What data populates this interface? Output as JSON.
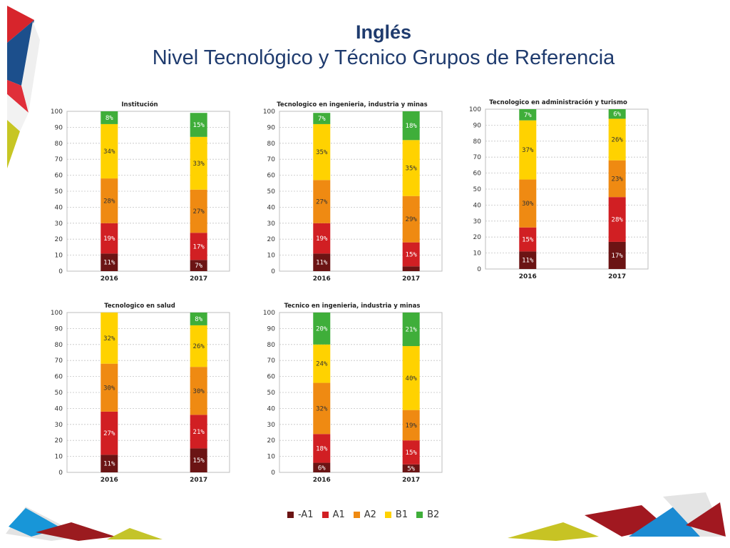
{
  "header": {
    "title": "Inglés",
    "subtitle": "Nivel Tecnológico y Técnico Grupos de Referencia"
  },
  "legend": [
    {
      "label": "-A1",
      "color": "#6b1414"
    },
    {
      "label": "A1",
      "color": "#d11f23"
    },
    {
      "label": "A2",
      "color": "#ef8a12"
    },
    {
      "label": "B1",
      "color": "#ffd200"
    },
    {
      "label": "B2",
      "color": "#3fae3a"
    }
  ],
  "chart_data": [
    {
      "type": "bar",
      "stacked": true,
      "title": "Institución",
      "categories": [
        "2016",
        "2017"
      ],
      "ylim": [
        0,
        100
      ],
      "yticks": [
        "0",
        "10",
        "20",
        "30",
        "40",
        "50",
        "60",
        "70",
        "80",
        "90",
        "100"
      ],
      "grid": true,
      "series": [
        {
          "name": "-A1",
          "values": [
            11,
            7
          ],
          "labels": [
            "11%",
            "7%"
          ]
        },
        {
          "name": "A1",
          "values": [
            19,
            17
          ],
          "labels": [
            "19%",
            "17%"
          ]
        },
        {
          "name": "A2",
          "values": [
            28,
            27
          ],
          "labels": [
            "28%",
            "27%"
          ]
        },
        {
          "name": "B1",
          "values": [
            34,
            33
          ],
          "labels": [
            "34%",
            "33%"
          ]
        },
        {
          "name": "B2",
          "values": [
            8,
            15
          ],
          "labels": [
            "8%",
            "15%"
          ]
        }
      ]
    },
    {
      "type": "bar",
      "stacked": true,
      "title": "Tecnologico en ingenieria, industria y minas",
      "categories": [
        "2016",
        "2017"
      ],
      "ylim": [
        0,
        100
      ],
      "yticks": [
        "0",
        "10",
        "20",
        "30",
        "40",
        "50",
        "60",
        "70",
        "80",
        "90",
        "100"
      ],
      "grid": true,
      "series": [
        {
          "name": "-A1",
          "values": [
            11,
            3
          ],
          "labels": [
            "11%",
            ""
          ]
        },
        {
          "name": "A1",
          "values": [
            19,
            15
          ],
          "labels": [
            "19%",
            "15%"
          ]
        },
        {
          "name": "A2",
          "values": [
            27,
            29
          ],
          "labels": [
            "27%",
            "29%"
          ]
        },
        {
          "name": "B1",
          "values": [
            35,
            35
          ],
          "labels": [
            "35%",
            "35%"
          ]
        },
        {
          "name": "B2",
          "values": [
            7,
            18
          ],
          "labels": [
            "7%",
            "18%"
          ]
        }
      ]
    },
    {
      "type": "bar",
      "stacked": true,
      "title": "Tecnologico en administración y turismo",
      "categories": [
        "2016",
        "2017"
      ],
      "ylim": [
        0,
        100
      ],
      "yticks": [
        "0",
        "10",
        "20",
        "30",
        "40",
        "50",
        "60",
        "70",
        "80",
        "90",
        "100"
      ],
      "grid": true,
      "series": [
        {
          "name": "-A1",
          "values": [
            11,
            17
          ],
          "labels": [
            "11%",
            "17%"
          ]
        },
        {
          "name": "A1",
          "values": [
            15,
            28
          ],
          "labels": [
            "15%",
            "28%"
          ]
        },
        {
          "name": "A2",
          "values": [
            30,
            23
          ],
          "labels": [
            "30%",
            "23%"
          ]
        },
        {
          "name": "B1",
          "values": [
            37,
            26
          ],
          "labels": [
            "37%",
            "26%"
          ]
        },
        {
          "name": "B2",
          "values": [
            7,
            6
          ],
          "labels": [
            "7%",
            "6%"
          ]
        }
      ]
    },
    {
      "type": "bar",
      "stacked": true,
      "title": "Tecnologico en salud",
      "categories": [
        "2016",
        "2017"
      ],
      "ylim": [
        0,
        100
      ],
      "yticks": [
        "0",
        "10",
        "20",
        "30",
        "40",
        "50",
        "60",
        "70",
        "80",
        "90",
        "100"
      ],
      "grid": true,
      "series": [
        {
          "name": "-A1",
          "values": [
            11,
            15
          ],
          "labels": [
            "11%",
            "15%"
          ]
        },
        {
          "name": "A1",
          "values": [
            27,
            21
          ],
          "labels": [
            "27%",
            "21%"
          ]
        },
        {
          "name": "A2",
          "values": [
            30,
            30
          ],
          "labels": [
            "30%",
            "30%"
          ]
        },
        {
          "name": "B1",
          "values": [
            32,
            26
          ],
          "labels": [
            "32%",
            "26%"
          ]
        },
        {
          "name": "B2",
          "values": [
            0,
            8
          ],
          "labels": [
            "",
            "8%"
          ]
        }
      ]
    },
    {
      "type": "bar",
      "stacked": true,
      "title": "Tecnico en ingenieria, industria y minas",
      "categories": [
        "2016",
        "2017"
      ],
      "ylim": [
        0,
        100
      ],
      "yticks": [
        "0",
        "10",
        "20",
        "30",
        "40",
        "50",
        "60",
        "70",
        "80",
        "90",
        "100"
      ],
      "grid": true,
      "series": [
        {
          "name": "-A1",
          "values": [
            6,
            5
          ],
          "labels": [
            "6%",
            "5%"
          ]
        },
        {
          "name": "A1",
          "values": [
            18,
            15
          ],
          "labels": [
            "18%",
            "15%"
          ]
        },
        {
          "name": "A2",
          "values": [
            32,
            19
          ],
          "labels": [
            "32%",
            "19%"
          ]
        },
        {
          "name": "B1",
          "values": [
            24,
            40
          ],
          "labels": [
            "24%",
            "40%"
          ]
        },
        {
          "name": "B2",
          "values": [
            20,
            21
          ],
          "labels": [
            "20%",
            "21%"
          ]
        }
      ]
    }
  ]
}
